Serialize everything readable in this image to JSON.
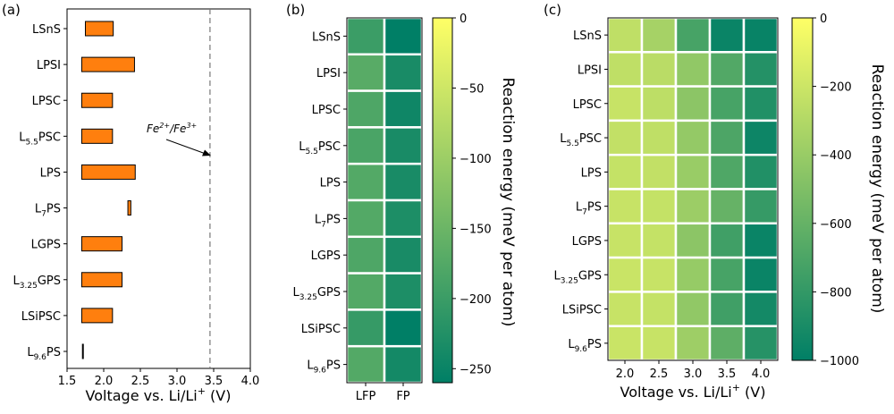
{
  "chart_data": [
    {
      "panel_label": "(a)",
      "type": "bar",
      "orientation": "horizontal",
      "categories": [
        "LSnS",
        "LPSI",
        "LPSC",
        "L5.5PSC",
        "LPS",
        "L7PS",
        "LGPS",
        "L3.25GPS",
        "LSiPSC",
        "L9.6PS"
      ],
      "category_labels": [
        {
          "main": "LSnS",
          "sub": "",
          "rest": ""
        },
        {
          "main": "LPSI",
          "sub": "",
          "rest": ""
        },
        {
          "main": "LPSC",
          "sub": "",
          "rest": ""
        },
        {
          "main": "L",
          "sub": "5.5",
          "rest": "PSC"
        },
        {
          "main": "LPS",
          "sub": "",
          "rest": ""
        },
        {
          "main": "L",
          "sub": "7",
          "rest": "PS"
        },
        {
          "main": "LGPS",
          "sub": "",
          "rest": ""
        },
        {
          "main": "L",
          "sub": "3.25",
          "rest": "GPS"
        },
        {
          "main": "LSiPSC",
          "sub": "",
          "rest": ""
        },
        {
          "main": "L",
          "sub": "9.6",
          "rest": "PS"
        }
      ],
      "ranges": [
        [
          1.75,
          2.13
        ],
        [
          1.7,
          2.42
        ],
        [
          1.7,
          2.12
        ],
        [
          1.7,
          2.12
        ],
        [
          1.7,
          2.43
        ],
        [
          2.33,
          2.37
        ],
        [
          1.7,
          2.25
        ],
        [
          1.7,
          2.25
        ],
        [
          1.7,
          2.12
        ],
        [
          1.71,
          1.72
        ]
      ],
      "bar_color": "#ff7f0e",
      "xlabel_main": "Voltage vs. Li/Li",
      "xlabel_sup": "+",
      "xlabel_unit": "(V)",
      "xlim": [
        1.5,
        4.0
      ],
      "xticks": [
        "1.5",
        "2.0",
        "2.5",
        "3.0",
        "3.5",
        "4.0"
      ],
      "reference_line": 3.45,
      "annotation": {
        "a": "Fe",
        "a_sup": "2+",
        "sep": "/",
        "b": "Fe",
        "b_sup": "3+"
      }
    },
    {
      "panel_label": "(b)",
      "type": "heatmap",
      "rows": [
        "LSnS",
        "LPSI",
        "LPSC",
        "L5.5PSC",
        "LPS",
        "L7PS",
        "LGPS",
        "L3.25GPS",
        "LSiPSC",
        "L9.6PS"
      ],
      "columns": [
        "LFP",
        "FP"
      ],
      "values": [
        [
          -200,
          -260
        ],
        [
          -170,
          -235
        ],
        [
          -180,
          -245
        ],
        [
          -185,
          -235
        ],
        [
          -175,
          -235
        ],
        [
          -175,
          -230
        ],
        [
          -180,
          -235
        ],
        [
          -175,
          -230
        ],
        [
          -205,
          -265
        ],
        [
          -175,
          -240
        ]
      ],
      "colorbar": {
        "label": "Reaction energy (meV per atom)",
        "range": [
          -260,
          0
        ],
        "ticks": [
          "0",
          "−50",
          "−100",
          "−150",
          "−200",
          "−250"
        ]
      }
    },
    {
      "panel_label": "(c)",
      "type": "heatmap",
      "rows": [
        "LSnS",
        "LPSI",
        "LPSC",
        "L5.5PSC",
        "LPS",
        "L7PS",
        "LGPS",
        "L3.25GPS",
        "LSiPSC",
        "L9.6PS"
      ],
      "columns": [
        "2.0",
        "2.5",
        "3.0",
        "3.5",
        "4.0"
      ],
      "values": [
        [
          -250,
          -350,
          -720,
          -960,
          -970
        ],
        [
          -250,
          -270,
          -430,
          -680,
          -860
        ],
        [
          -220,
          -260,
          -450,
          -720,
          -870
        ],
        [
          -240,
          -250,
          -420,
          -700,
          -950
        ],
        [
          -230,
          -240,
          -400,
          -690,
          -870
        ],
        [
          -220,
          -230,
          -390,
          -600,
          -790
        ],
        [
          -220,
          -230,
          -450,
          -750,
          -960
        ],
        [
          -210,
          -220,
          -410,
          -720,
          -960
        ],
        [
          -220,
          -230,
          -430,
          -750,
          -920
        ],
        [
          -210,
          -220,
          -380,
          -630,
          -850
        ]
      ],
      "xlabel_main": "Voltage vs. Li/Li",
      "xlabel_sup": "+",
      "xlabel_unit": "(V)",
      "colorbar": {
        "label": "Reaction energy (meV per atom)",
        "range": [
          -1000,
          0
        ],
        "ticks": [
          "0",
          "−200",
          "−400",
          "−600",
          "−800",
          "−1000"
        ]
      }
    }
  ]
}
